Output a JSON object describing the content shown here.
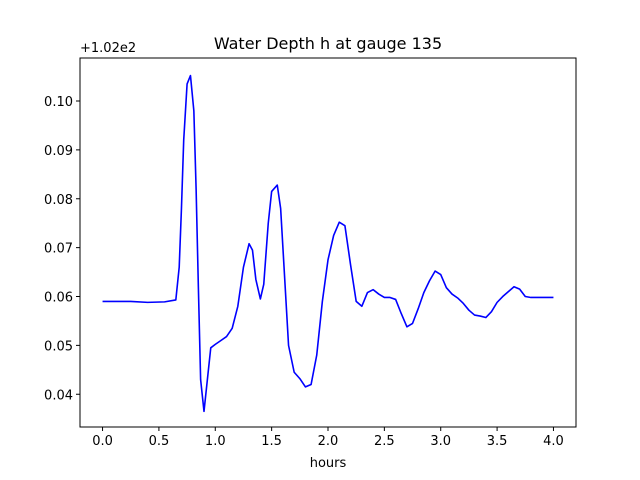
{
  "chart_data": {
    "type": "line",
    "title": "Water Depth h at gauge 135",
    "xlabel": "hours",
    "ylabel": "",
    "y_offset_label": "+1.02e2",
    "xlim": [
      -0.2,
      4.2
    ],
    "ylim": [
      0.0333,
      0.1088
    ],
    "x_ticks": [
      0.0,
      0.5,
      1.0,
      1.5,
      2.0,
      2.5,
      3.0,
      3.5,
      4.0
    ],
    "x_tick_labels": [
      "0.0",
      "0.5",
      "1.0",
      "1.5",
      "2.0",
      "2.5",
      "3.0",
      "3.5",
      "4.0"
    ],
    "y_ticks": [
      0.04,
      0.05,
      0.06,
      0.07,
      0.08,
      0.09,
      0.1
    ],
    "y_tick_labels": [
      "0.04",
      "0.05",
      "0.06",
      "0.07",
      "0.08",
      "0.09",
      "0.10"
    ],
    "grid": false,
    "series": [
      {
        "color": "#0000ff",
        "x": [
          0.0,
          0.25,
          0.4,
          0.55,
          0.65,
          0.68,
          0.7,
          0.72,
          0.75,
          0.78,
          0.81,
          0.83,
          0.85,
          0.87,
          0.9,
          0.93,
          0.96,
          1.0,
          1.05,
          1.1,
          1.15,
          1.2,
          1.25,
          1.3,
          1.33,
          1.36,
          1.4,
          1.43,
          1.47,
          1.5,
          1.55,
          1.58,
          1.61,
          1.65,
          1.7,
          1.75,
          1.8,
          1.85,
          1.9,
          1.95,
          2.0,
          2.05,
          2.1,
          2.15,
          2.2,
          2.25,
          2.3,
          2.35,
          2.4,
          2.45,
          2.5,
          2.55,
          2.6,
          2.65,
          2.7,
          2.75,
          2.8,
          2.85,
          2.9,
          2.95,
          3.0,
          3.05,
          3.1,
          3.15,
          3.2,
          3.25,
          3.3,
          3.35,
          3.4,
          3.45,
          3.5,
          3.55,
          3.6,
          3.65,
          3.7,
          3.75,
          3.8,
          3.85,
          3.9,
          3.95,
          4.0
        ],
        "y": [
          0.059,
          0.059,
          0.0588,
          0.0589,
          0.0593,
          0.066,
          0.078,
          0.092,
          0.1035,
          0.1052,
          0.098,
          0.082,
          0.062,
          0.043,
          0.0365,
          0.043,
          0.0495,
          0.0502,
          0.051,
          0.0518,
          0.0535,
          0.058,
          0.066,
          0.0708,
          0.0695,
          0.0635,
          0.0595,
          0.0625,
          0.075,
          0.0815,
          0.0828,
          0.078,
          0.066,
          0.05,
          0.0445,
          0.0432,
          0.0415,
          0.042,
          0.048,
          0.059,
          0.0675,
          0.0725,
          0.0752,
          0.0745,
          0.0665,
          0.059,
          0.058,
          0.0608,
          0.0614,
          0.0605,
          0.0598,
          0.0598,
          0.0594,
          0.0565,
          0.0538,
          0.0545,
          0.0575,
          0.0608,
          0.0632,
          0.0652,
          0.0645,
          0.0618,
          0.0605,
          0.0597,
          0.0586,
          0.0572,
          0.0562,
          0.056,
          0.0557,
          0.0569,
          0.0588,
          0.06,
          0.061,
          0.062,
          0.0615,
          0.06,
          0.0598,
          0.0598,
          0.0598,
          0.0598,
          0.0598
        ]
      }
    ]
  }
}
